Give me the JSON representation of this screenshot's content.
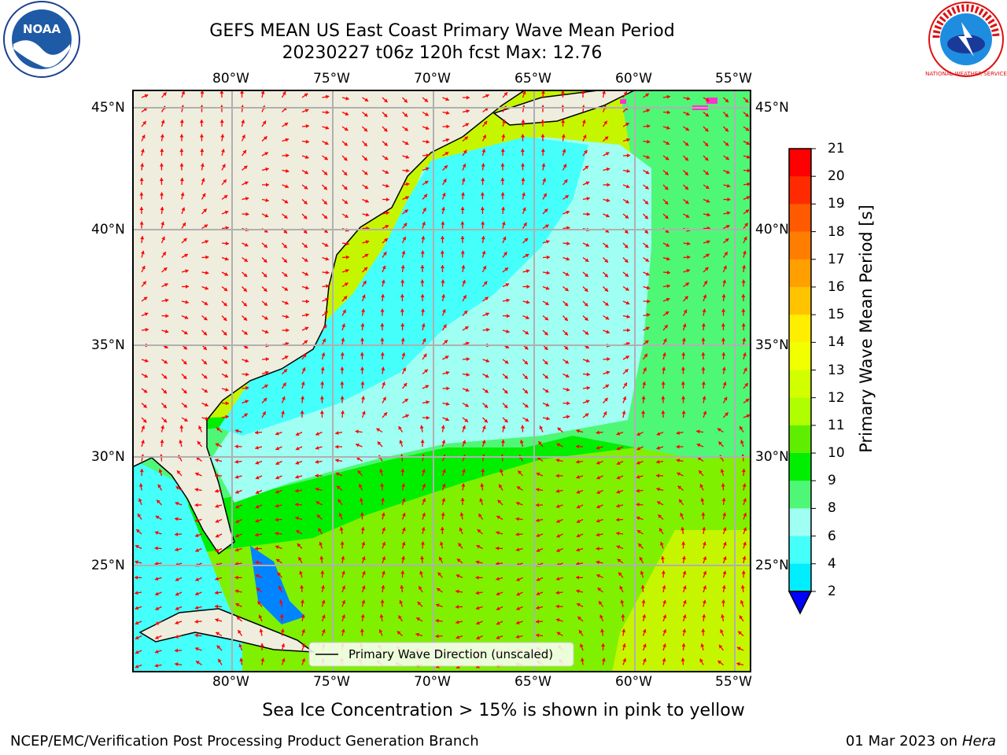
{
  "header": {
    "title_line1": "GEFS MEAN US East Coast Primary Wave Mean Period",
    "title_line2": "20230227 t06z 120h fcst   Max: 12.76"
  },
  "logos": {
    "left_label": "NOAA",
    "right_label": "NATIONAL WEATHER SERVICE"
  },
  "map": {
    "lon_labels": [
      "80°W",
      "75°W",
      "70°W",
      "65°W",
      "60°W",
      "55°W"
    ],
    "lat_labels": [
      "45°N",
      "40°N",
      "35°N",
      "30°N",
      "25°N"
    ],
    "legend_label": "Primary Wave Direction (unscaled)",
    "colors": {
      "land": "#efedde",
      "arrow": "#ff0000",
      "grid": "#b0b0b0"
    }
  },
  "colorbar": {
    "label": "Primary Wave Mean Period [s]",
    "ticks": [
      "21",
      "20",
      "19",
      "18",
      "17",
      "16",
      "15",
      "14",
      "13",
      "12",
      "11",
      "10",
      "9",
      "8",
      "6",
      "4",
      "2"
    ],
    "colors": [
      "#ff0000",
      "#ff2a00",
      "#ff5a00",
      "#ff7d00",
      "#ff9f00",
      "#ffc300",
      "#ffee00",
      "#f2ff00",
      "#d2ff00",
      "#b0ff00",
      "#5fed00",
      "#00ee00",
      "#4ff776",
      "#9ffff3",
      "#45fffb",
      "#00eeff",
      "#0084ff",
      "#0000ff"
    ]
  },
  "footer": {
    "ice_note": "Sea Ice Concentration > 15% is shown in pink to yellow",
    "credit": "NCEP/EMC/Verification Post Processing Product Generation Branch",
    "date_prefix": "01 Mar 2023 on",
    "machine": "Hera"
  }
}
